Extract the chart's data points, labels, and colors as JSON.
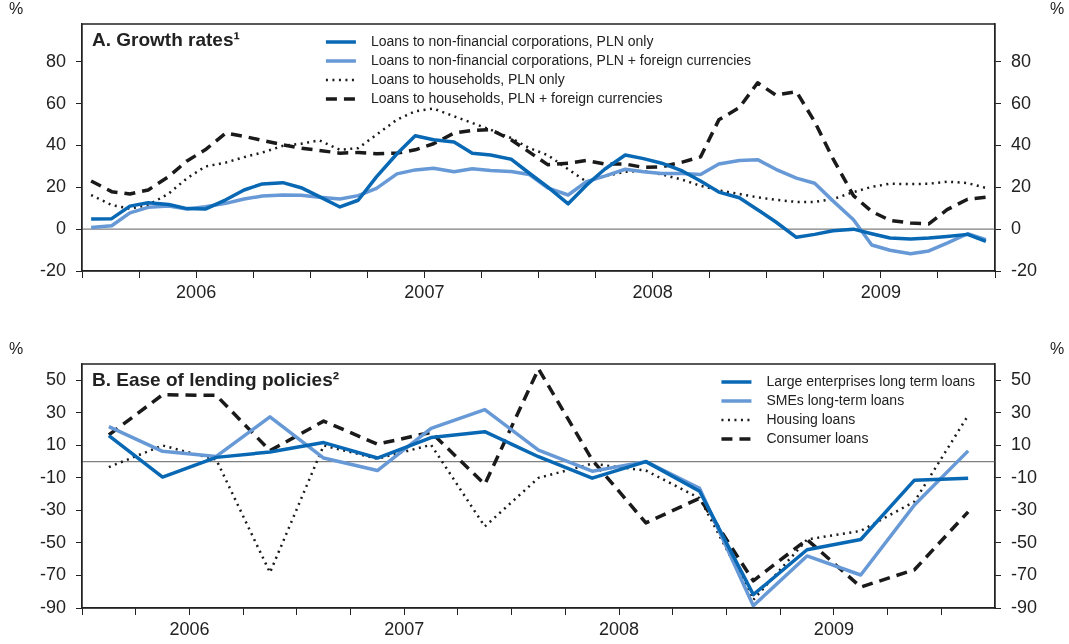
{
  "chart_data": [
    {
      "type": "line",
      "title": "A. Growth rates¹",
      "ylabel": "%",
      "y2label": "%",
      "legend": "top",
      "marker": "none",
      "x": [
        2006.04,
        2006.13,
        2006.21,
        2006.29,
        2006.38,
        2006.46,
        2006.54,
        2006.63,
        2006.71,
        2006.79,
        2006.88,
        2006.96,
        2007.04,
        2007.13,
        2007.21,
        2007.29,
        2007.38,
        2007.46,
        2007.54,
        2007.63,
        2007.71,
        2007.79,
        2007.88,
        2007.96,
        2008.04,
        2008.13,
        2008.21,
        2008.29,
        2008.38,
        2008.46,
        2008.54,
        2008.63,
        2008.71,
        2008.79,
        2008.88,
        2008.96,
        2009.04,
        2009.13,
        2009.21,
        2009.29,
        2009.38,
        2009.46,
        2009.54,
        2009.63,
        2009.71,
        2009.79,
        2009.88,
        2009.96
      ],
      "series": [
        {
          "name": "Loans to non-financial corporations, PLN only",
          "color": "#0868b4",
          "line_style": "solid",
          "values": [
            4.8,
            5,
            11,
            12.6,
            11.8,
            9.8,
            9.6,
            14,
            18.7,
            21.6,
            22.2,
            19.8,
            15.5,
            10.6,
            13.8,
            25,
            36,
            44.6,
            42.7,
            41.6,
            36.3,
            35.4,
            33.4,
            26.7,
            20.2,
            12.1,
            21,
            28.6,
            35.4,
            33.7,
            31.5,
            27.8,
            23,
            17.7,
            15,
            9.3,
            3.4,
            -3.9,
            -2.5,
            -0.8,
            0,
            -2.2,
            -4.2,
            -4.7,
            -4.2,
            -3.5,
            -2.5,
            -5.9
          ]
        },
        {
          "name": "Loans to non-financial corporations, PLN + foreign currencies",
          "color": "#6699d6",
          "line_style": "solid",
          "values": [
            0.8,
            1.6,
            7.8,
            10.4,
            11,
            9.6,
            10.7,
            12.3,
            14.4,
            15.8,
            16.3,
            16.2,
            15.2,
            14.4,
            16,
            19.5,
            26.4,
            28.3,
            29.1,
            27.4,
            28.8,
            28,
            27.5,
            26.1,
            19.7,
            16.3,
            22.7,
            25.3,
            28.6,
            27.4,
            26.6,
            26.6,
            26.1,
            31.1,
            32.8,
            33.2,
            28.6,
            24.4,
            21.9,
            13.5,
            4.5,
            -7.6,
            -10.1,
            -11.8,
            -10.4,
            -6.7,
            -2.2,
            -5
          ]
        },
        {
          "name": "Loans to households, PLN only",
          "color": "#1a1a1a",
          "line_style": "dotted",
          "values": [
            16.3,
            11.5,
            9.8,
            11.5,
            17,
            24.3,
            29.9,
            31.8,
            34.4,
            36.6,
            39.8,
            40.8,
            42.4,
            37.9,
            38.7,
            45.1,
            52.3,
            56.3,
            57.6,
            53.9,
            50.7,
            47.5,
            43.5,
            38.7,
            35.4,
            28.6,
            22.7,
            25.3,
            27.4,
            27.8,
            26.1,
            23.6,
            20.7,
            18.5,
            16.8,
            15.2,
            14,
            13,
            13,
            14.3,
            17.7,
            20.2,
            21.7,
            21.5,
            21.7,
            22.7,
            22,
            19.7
          ]
        },
        {
          "name": "Loans to households, PLN + foreign currencies",
          "color": "#1a1a1a",
          "line_style": "dashed",
          "values": [
            23,
            17.9,
            16.8,
            18.7,
            25.1,
            32.6,
            37.9,
            45.9,
            44.3,
            42.4,
            40.3,
            38.7,
            37.6,
            36.3,
            36.6,
            36,
            36.3,
            37.9,
            40.8,
            45.9,
            47.2,
            47.5,
            42.7,
            36.8,
            30.8,
            31.5,
            32.8,
            31.1,
            31.1,
            29.5,
            29.8,
            32,
            34.5,
            52.2,
            58.1,
            69.9,
            64,
            65.7,
            51.3,
            33.7,
            16,
            8.4,
            4.2,
            2.9,
            2.5,
            9.3,
            14.3,
            15.2
          ]
        }
      ],
      "xlim": [
        2006,
        2010
      ],
      "xticks": [
        {
          "value": 2006,
          "label": null
        },
        {
          "value": 2006.25,
          "label": null
        },
        {
          "value": 2006.5,
          "label": "2006"
        },
        {
          "value": 2006.75,
          "label": null
        },
        {
          "value": 2007,
          "label": null
        },
        {
          "value": 2007.25,
          "label": null
        },
        {
          "value": 2007.5,
          "label": "2007"
        },
        {
          "value": 2007.75,
          "label": null
        },
        {
          "value": 2008,
          "label": null
        },
        {
          "value": 2008.25,
          "label": null
        },
        {
          "value": 2008.5,
          "label": "2008"
        },
        {
          "value": 2008.75,
          "label": null
        },
        {
          "value": 2009,
          "label": null
        },
        {
          "value": 2009.25,
          "label": null
        },
        {
          "value": 2009.5,
          "label": "2009"
        },
        {
          "value": 2009.75,
          "label": null
        },
        {
          "value": 2010,
          "label": null
        }
      ],
      "ylim": [
        -20,
        98
      ],
      "yticks": [
        -20,
        0,
        20,
        40,
        60,
        80
      ],
      "y2lim": [
        -20,
        98
      ],
      "y2ticks": [
        -20,
        0,
        20,
        40,
        60,
        80
      ],
      "ref_lines": [
        {
          "axis": "y",
          "value": 0,
          "color": "#808080"
        }
      ],
      "grid": false
    },
    {
      "type": "line",
      "title": "B. Ease of lending policies²",
      "ylabel": "%",
      "y2label": "%",
      "legend": "top right",
      "marker": "none",
      "x": [
        2006.125,
        2006.375,
        2006.625,
        2006.875,
        2007.125,
        2007.375,
        2007.625,
        2007.875,
        2008.125,
        2008.375,
        2008.625,
        2008.875,
        2009.125,
        2009.375,
        2009.625,
        2009.875,
        2010.125
      ],
      "series": [
        {
          "name": "Large enterprises long term loans",
          "color": "#0868b4",
          "line_style": "solid",
          "values": [
            16,
            -9.5,
            2.6,
            5.9,
            11.7,
            2.2,
            14.8,
            18.4,
            3,
            -10.2,
            0,
            -18.2,
            -81.8,
            -54.2,
            -47.9,
            -11.4,
            -10.2
          ]
        },
        {
          "name": "SMEs long-term loans",
          "color": "#6699d6",
          "line_style": "solid",
          "values": [
            21.5,
            6.3,
            3.2,
            27.5,
            2.2,
            -5.5,
            20.4,
            32,
            7,
            -5.9,
            0,
            -16.5,
            -88.6,
            -58,
            -69.7,
            -26.7,
            6.6
          ]
        },
        {
          "name": "Housing loans",
          "color": "#1a1a1a",
          "line_style": "dotted",
          "values": [
            -3.4,
            9.9,
            1.2,
            -68.2,
            9.9,
            1.8,
            10.3,
            -39.9,
            -10,
            -1.3,
            -5.5,
            -22.5,
            -85,
            -47.9,
            -42.6,
            -24.6,
            28.4
          ]
        },
        {
          "name": "Consumer loans",
          "color": "#1a1a1a",
          "line_style": "dashed",
          "values": [
            16.4,
            41.1,
            40.7,
            6.7,
            24.9,
            10.7,
            18,
            -14,
            57,
            1,
            -37.7,
            -22.5,
            -73.3,
            -47.9,
            -77.1,
            -66.5,
            -30.9
          ]
        }
      ],
      "xlim": [
        2006,
        2010.25
      ],
      "xticks": [
        {
          "value": 2006,
          "label": null
        },
        {
          "value": 2006.25,
          "label": null
        },
        {
          "value": 2006.5,
          "label": "2006"
        },
        {
          "value": 2006.75,
          "label": null
        },
        {
          "value": 2007,
          "label": null
        },
        {
          "value": 2007.25,
          "label": null
        },
        {
          "value": 2007.5,
          "label": "2007"
        },
        {
          "value": 2007.75,
          "label": null
        },
        {
          "value": 2008,
          "label": null
        },
        {
          "value": 2008.25,
          "label": null
        },
        {
          "value": 2008.5,
          "label": "2008"
        },
        {
          "value": 2008.75,
          "label": null
        },
        {
          "value": 2009,
          "label": null
        },
        {
          "value": 2009.25,
          "label": null
        },
        {
          "value": 2009.5,
          "label": "2009"
        },
        {
          "value": 2009.75,
          "label": null
        },
        {
          "value": 2010,
          "label": null
        }
      ],
      "ylim": [
        -90,
        60
      ],
      "yticks": [
        -90,
        -70,
        -50,
        -30,
        -10,
        10,
        30,
        50
      ],
      "y2lim": [
        -90,
        60
      ],
      "y2ticks": [
        -90,
        -70,
        -50,
        -30,
        -10,
        10,
        30,
        50
      ],
      "ref_lines": [
        {
          "axis": "y",
          "value": 0,
          "color": "#808080"
        }
      ],
      "grid": false
    }
  ]
}
